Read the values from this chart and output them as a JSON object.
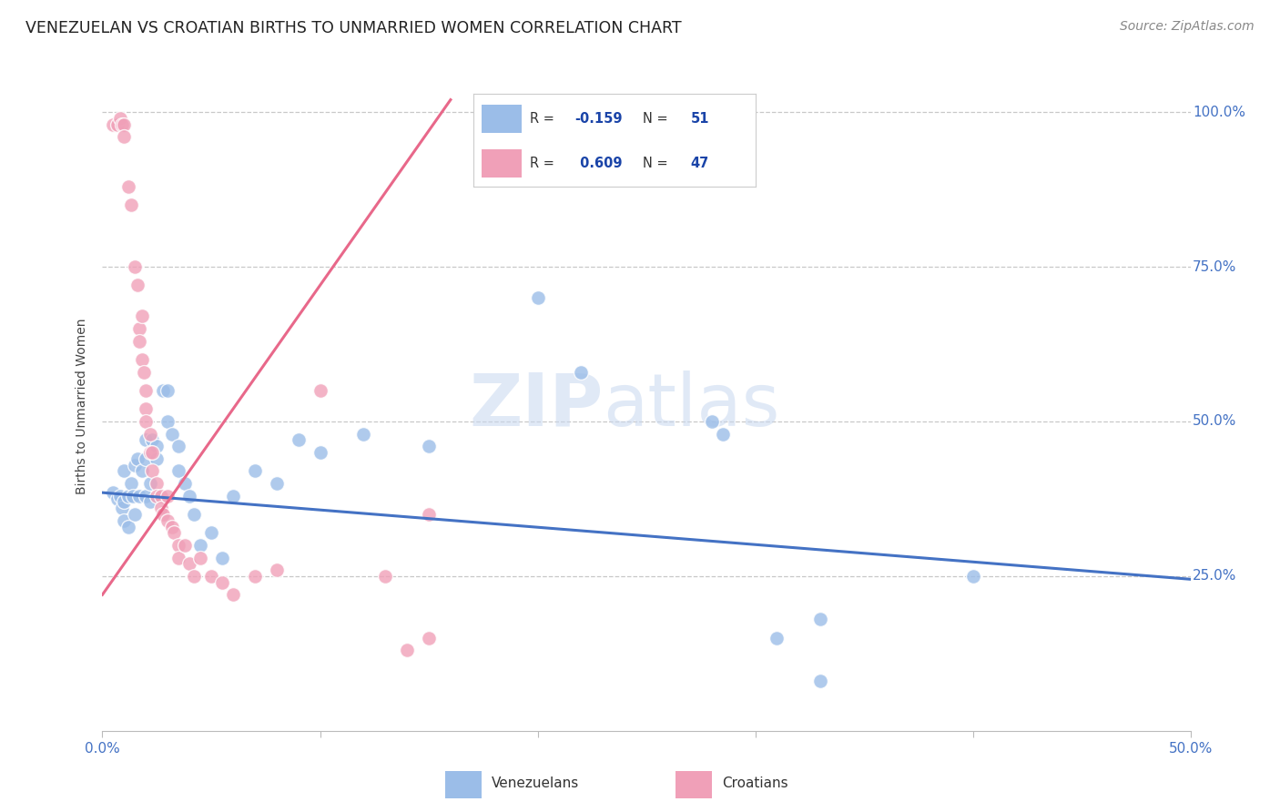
{
  "title": "VENEZUELAN VS CROATIAN BIRTHS TO UNMARRIED WOMEN CORRELATION CHART",
  "source": "Source: ZipAtlas.com",
  "ylabel": "Births to Unmarried Women",
  "watermark_zip": "ZIP",
  "watermark_atlas": "atlas",
  "xlim": [
    0.0,
    0.5
  ],
  "ylim": [
    0.0,
    1.05
  ],
  "ytick_right_labels": [
    "100.0%",
    "75.0%",
    "50.0%",
    "25.0%"
  ],
  "ytick_right_values": [
    1.0,
    0.75,
    0.5,
    0.25
  ],
  "ytick_grid_values": [
    1.0,
    0.75,
    0.5,
    0.25
  ],
  "venezuelan_scatter": [
    [
      0.005,
      0.385
    ],
    [
      0.007,
      0.375
    ],
    [
      0.008,
      0.38
    ],
    [
      0.009,
      0.36
    ],
    [
      0.01,
      0.42
    ],
    [
      0.01,
      0.37
    ],
    [
      0.01,
      0.34
    ],
    [
      0.012,
      0.38
    ],
    [
      0.012,
      0.33
    ],
    [
      0.013,
      0.4
    ],
    [
      0.014,
      0.38
    ],
    [
      0.015,
      0.35
    ],
    [
      0.015,
      0.43
    ],
    [
      0.016,
      0.44
    ],
    [
      0.017,
      0.38
    ],
    [
      0.018,
      0.42
    ],
    [
      0.02,
      0.38
    ],
    [
      0.02,
      0.44
    ],
    [
      0.02,
      0.47
    ],
    [
      0.022,
      0.4
    ],
    [
      0.022,
      0.37
    ],
    [
      0.023,
      0.47
    ],
    [
      0.025,
      0.46
    ],
    [
      0.025,
      0.44
    ],
    [
      0.028,
      0.55
    ],
    [
      0.03,
      0.5
    ],
    [
      0.03,
      0.55
    ],
    [
      0.032,
      0.48
    ],
    [
      0.035,
      0.46
    ],
    [
      0.035,
      0.42
    ],
    [
      0.038,
      0.4
    ],
    [
      0.04,
      0.38
    ],
    [
      0.042,
      0.35
    ],
    [
      0.045,
      0.3
    ],
    [
      0.05,
      0.32
    ],
    [
      0.055,
      0.28
    ],
    [
      0.06,
      0.38
    ],
    [
      0.07,
      0.42
    ],
    [
      0.08,
      0.4
    ],
    [
      0.09,
      0.47
    ],
    [
      0.1,
      0.45
    ],
    [
      0.12,
      0.48
    ],
    [
      0.15,
      0.46
    ],
    [
      0.2,
      0.7
    ],
    [
      0.22,
      0.58
    ],
    [
      0.28,
      0.5
    ],
    [
      0.285,
      0.48
    ],
    [
      0.31,
      0.15
    ],
    [
      0.33,
      0.18
    ],
    [
      0.33,
      0.08
    ],
    [
      0.4,
      0.25
    ]
  ],
  "croatian_scatter": [
    [
      0.005,
      0.98
    ],
    [
      0.007,
      0.98
    ],
    [
      0.008,
      0.99
    ],
    [
      0.009,
      0.98
    ],
    [
      0.01,
      0.98
    ],
    [
      0.01,
      0.96
    ],
    [
      0.012,
      0.88
    ],
    [
      0.013,
      0.85
    ],
    [
      0.015,
      0.75
    ],
    [
      0.016,
      0.72
    ],
    [
      0.017,
      0.65
    ],
    [
      0.017,
      0.63
    ],
    [
      0.018,
      0.67
    ],
    [
      0.018,
      0.6
    ],
    [
      0.019,
      0.58
    ],
    [
      0.02,
      0.55
    ],
    [
      0.02,
      0.52
    ],
    [
      0.02,
      0.5
    ],
    [
      0.022,
      0.48
    ],
    [
      0.022,
      0.45
    ],
    [
      0.023,
      0.45
    ],
    [
      0.023,
      0.42
    ],
    [
      0.025,
      0.4
    ],
    [
      0.025,
      0.38
    ],
    [
      0.027,
      0.38
    ],
    [
      0.027,
      0.36
    ],
    [
      0.028,
      0.35
    ],
    [
      0.03,
      0.38
    ],
    [
      0.03,
      0.34
    ],
    [
      0.032,
      0.33
    ],
    [
      0.033,
      0.32
    ],
    [
      0.035,
      0.3
    ],
    [
      0.035,
      0.28
    ],
    [
      0.038,
      0.3
    ],
    [
      0.04,
      0.27
    ],
    [
      0.042,
      0.25
    ],
    [
      0.045,
      0.28
    ],
    [
      0.05,
      0.25
    ],
    [
      0.055,
      0.24
    ],
    [
      0.06,
      0.22
    ],
    [
      0.07,
      0.25
    ],
    [
      0.08,
      0.26
    ],
    [
      0.1,
      0.55
    ],
    [
      0.13,
      0.25
    ],
    [
      0.14,
      0.13
    ],
    [
      0.15,
      0.35
    ],
    [
      0.15,
      0.15
    ]
  ],
  "blue_line": {
    "x0": 0.0,
    "y0": 0.385,
    "x1": 0.5,
    "y1": 0.245
  },
  "pink_line": {
    "x0": 0.0,
    "y0": 0.22,
    "x1": 0.16,
    "y1": 1.02
  },
  "blue_color": "#4472c4",
  "pink_color": "#e8688a",
  "blue_scatter_color": "#9bbde8",
  "pink_scatter_color": "#f0a0b8",
  "background_color": "#ffffff",
  "grid_color": "#c8c8c8",
  "tick_label_color": "#4472c4",
  "title_color": "#222222",
  "source_color": "#888888",
  "ylabel_color": "#444444",
  "legend_box_color": "#cccccc",
  "r_value_color": "#1a44a8",
  "n_value_color": "#1a44a8",
  "legend_text_color": "#333333"
}
